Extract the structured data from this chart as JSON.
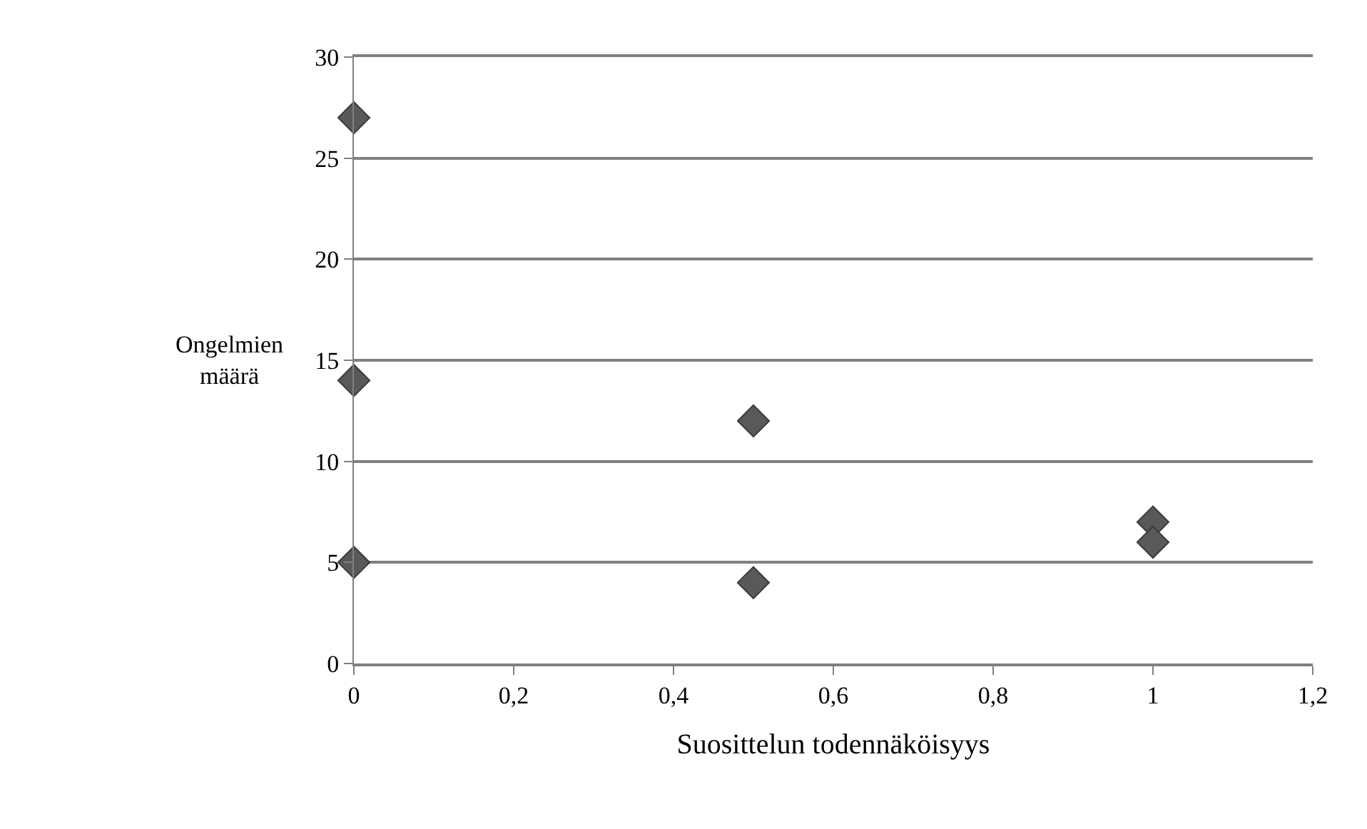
{
  "chart_data": {
    "type": "scatter",
    "xlabel": "Suosittelun todennäköisyys",
    "ylabel": "Ongelmien määrä",
    "x": [
      0,
      0,
      0,
      0.5,
      0.5,
      1,
      1
    ],
    "series": [
      {
        "color": "#595959",
        "values": [
          27,
          14,
          5,
          12,
          4,
          7,
          6
        ]
      }
    ],
    "xlim": [
      0,
      1.2
    ],
    "ylim": [
      0,
      30
    ],
    "xticks": [
      0,
      {
        "value": 0.2,
        "label": "0,2"
      },
      {
        "value": 0.4,
        "label": "0,4"
      },
      {
        "value": 0.6,
        "label": "0,6"
      },
      {
        "value": 0.8,
        "label": "0,8"
      },
      1,
      {
        "value": 1.2,
        "label": "1,2"
      }
    ],
    "yticks": [
      0,
      5,
      10,
      15,
      20,
      25,
      30
    ],
    "grid": "y",
    "marker": "diamond"
  }
}
